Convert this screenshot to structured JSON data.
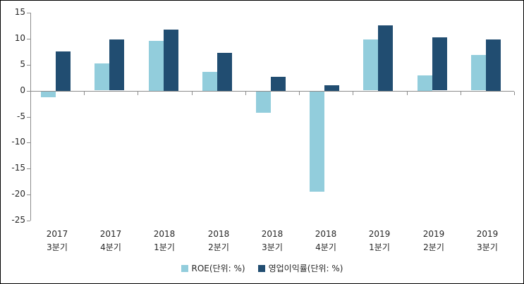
{
  "chart_data": {
    "type": "bar",
    "title": "",
    "xlabel": "",
    "ylabel": "",
    "categories": [
      [
        "2017",
        "3분기"
      ],
      [
        "2017",
        "4분기"
      ],
      [
        "2018",
        "1분기"
      ],
      [
        "2018",
        "2분기"
      ],
      [
        "2018",
        "3분기"
      ],
      [
        "2018",
        "4분기"
      ],
      [
        "2019",
        "1분기"
      ],
      [
        "2019",
        "2분기"
      ],
      [
        "2019",
        "3분기"
      ]
    ],
    "series": [
      {
        "name": "ROE(단위: %)",
        "color": "#92CDDC",
        "values": [
          -1.1,
          5.2,
          9.6,
          3.6,
          -4.1,
          -19.3,
          9.8,
          3.0,
          6.8
        ]
      },
      {
        "name": "영업이익률(단위: %)",
        "color": "#214D71",
        "values": [
          7.6,
          9.8,
          11.8,
          7.3,
          2.7,
          1.1,
          12.6,
          10.2,
          9.9
        ]
      }
    ],
    "ylim": [
      -25,
      15
    ],
    "yticks": [
      15,
      10,
      5,
      0,
      -5,
      -10,
      -15,
      -20,
      -25
    ],
    "grid": false,
    "legend_position": "bottom",
    "colors": {
      "axis": "#8C8C8C",
      "text": "#262626",
      "background": "#FFFFFF",
      "border": "#000000"
    }
  }
}
